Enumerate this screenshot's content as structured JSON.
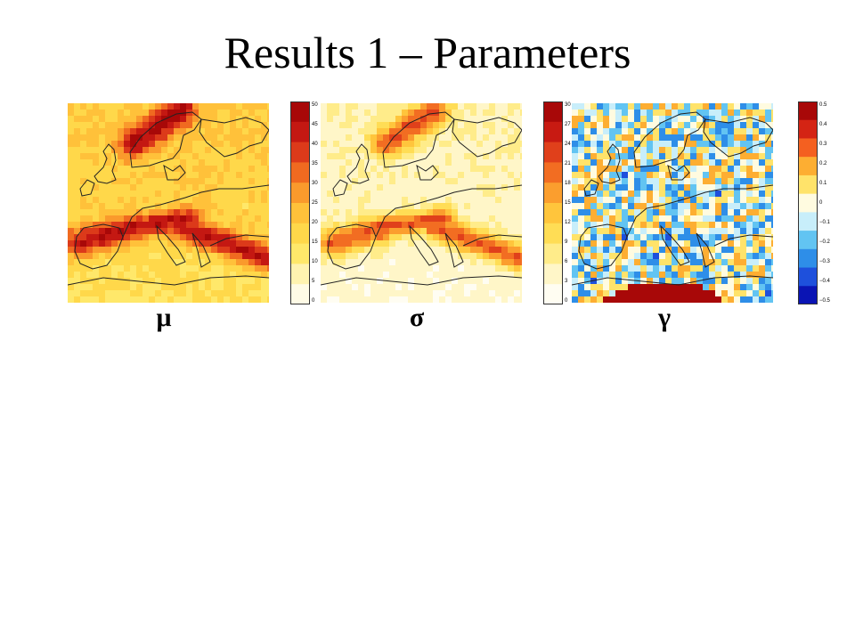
{
  "slide": {
    "title": "Results 1 – Parameters"
  },
  "panels": [
    {
      "id": "mu",
      "label": "μ",
      "colormap": [
        "#fffbe6",
        "#fff3b0",
        "#ffe86a",
        "#ffd84a",
        "#ffc13a",
        "#fa9a2c",
        "#f06a20",
        "#dc3a1a",
        "#c41812",
        "#a80808"
      ],
      "scale_ticks": [
        "50",
        "45",
        "40",
        "35",
        "30",
        "25",
        "20",
        "15",
        "10",
        "5",
        "0"
      ]
    },
    {
      "id": "sigma",
      "label": "σ",
      "colormap": [
        "#fffdf2",
        "#fff6c8",
        "#ffec8a",
        "#ffdd55",
        "#ffc53c",
        "#fb9e2e",
        "#f26d22",
        "#e0401b",
        "#c81a12",
        "#a80808"
      ],
      "scale_ticks": [
        "30",
        "27",
        "24",
        "21",
        "18",
        "15",
        "12",
        "9",
        "6",
        "3",
        "0"
      ]
    },
    {
      "id": "gamma",
      "label": "γ",
      "colormap": [
        "#0a14b4",
        "#1e50dc",
        "#2e8ee8",
        "#62c4f2",
        "#c8eefa",
        "#fffbe0",
        "#ffe36a",
        "#fdae32",
        "#f46020",
        "#d42414",
        "#a80808"
      ],
      "scale_ticks": [
        "0.5",
        "0.4",
        "0.3",
        "0.2",
        "0.1",
        "0",
        "−0.1",
        "−0.2",
        "−0.3",
        "−0.4",
        "−0.5"
      ]
    }
  ]
}
